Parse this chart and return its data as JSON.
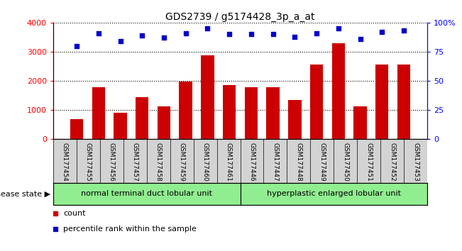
{
  "title": "GDS2739 / g5174428_3p_a_at",
  "categories": [
    "GSM177454",
    "GSM177455",
    "GSM177456",
    "GSM177457",
    "GSM177458",
    "GSM177459",
    "GSM177460",
    "GSM177461",
    "GSM177446",
    "GSM177447",
    "GSM177448",
    "GSM177449",
    "GSM177450",
    "GSM177451",
    "GSM177452",
    "GSM177453"
  ],
  "counts": [
    680,
    1780,
    900,
    1450,
    1120,
    1980,
    2880,
    1860,
    1780,
    1780,
    1350,
    2560,
    3280,
    1140,
    2570,
    2560
  ],
  "percentiles": [
    80,
    91,
    84,
    89,
    87,
    91,
    95,
    90,
    90,
    90,
    88,
    91,
    95,
    86,
    92,
    93
  ],
  "bar_color": "#cc0000",
  "dot_color": "#0000cc",
  "group1_label": "normal terminal duct lobular unit",
  "group2_label": "hyperplastic enlarged lobular unit",
  "group1_count": 8,
  "group2_count": 8,
  "group_color": "#90ee90",
  "disease_state_label": "disease state",
  "ylim_left": [
    0,
    4000
  ],
  "ylim_right": [
    0,
    100
  ],
  "yticks_left": [
    0,
    1000,
    2000,
    3000,
    4000
  ],
  "yticks_right_vals": [
    0,
    25,
    50,
    75,
    100
  ],
  "yticks_right_labels": [
    "0",
    "25",
    "50",
    "75",
    "100%"
  ],
  "legend_count_label": "count",
  "legend_pct_label": "percentile rank within the sample",
  "tick_label_area_color": "#d3d3d3"
}
